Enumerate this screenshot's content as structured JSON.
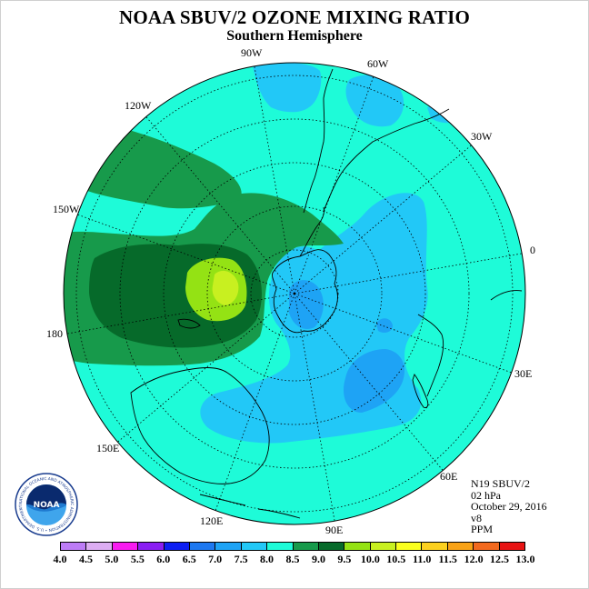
{
  "header": {
    "title": "NOAA SBUV/2 OZONE MIXING RATIO",
    "subtitle": "Southern Hemisphere"
  },
  "longitudes": {
    "w90": "90W",
    "w60": "60W",
    "w30": "30W",
    "e0": "0",
    "e30": "30E",
    "e60": "60E",
    "e90": "90E",
    "e120": "120E",
    "e150": "150E",
    "e180": "180",
    "w150": "150W",
    "w120": "120W"
  },
  "meta": {
    "instrument": "N19 SBUV/2",
    "level": "02 hPa",
    "date": "October 29, 2016",
    "version": "v8",
    "units": "PPM"
  },
  "logo": {
    "text": "NOAA",
    "ring_text": "NATIONAL OCEANIC AND ATMOSPHERIC ADMINISTRATION • U.S. DEPARTMENT OF COMMERCE •"
  },
  "colorbar": {
    "labels": [
      "4.0",
      "4.5",
      "5.0",
      "5.5",
      "6.0",
      "6.5",
      "7.0",
      "7.5",
      "8.0",
      "8.5",
      "9.0",
      "9.5",
      "10.0",
      "10.5",
      "11.0",
      "11.5",
      "12.0",
      "12.5",
      "13.0"
    ],
    "colors": [
      "#bd7cf6",
      "#dcadf2",
      "#f81cf0",
      "#8a1ef2",
      "#0d1ff2",
      "#1d78f0",
      "#1ea3f5",
      "#22c8f7",
      "#1efbd8",
      "#179a4b",
      "#066a2a",
      "#94e214",
      "#c8f020",
      "#faff1e",
      "#fcd01e",
      "#f8a216",
      "#f2691e",
      "#e81414",
      "#8a5b3c"
    ]
  },
  "field_colors": {
    "level_7_0": "#1ea3f5",
    "level_7_5": "#22c8f7",
    "level_8_0": "#1efbd8",
    "level_8_5": "#179a4b",
    "level_9_0": "#066a2a",
    "level_9_5": "#94e214",
    "level_10_0": "#c8f020"
  }
}
